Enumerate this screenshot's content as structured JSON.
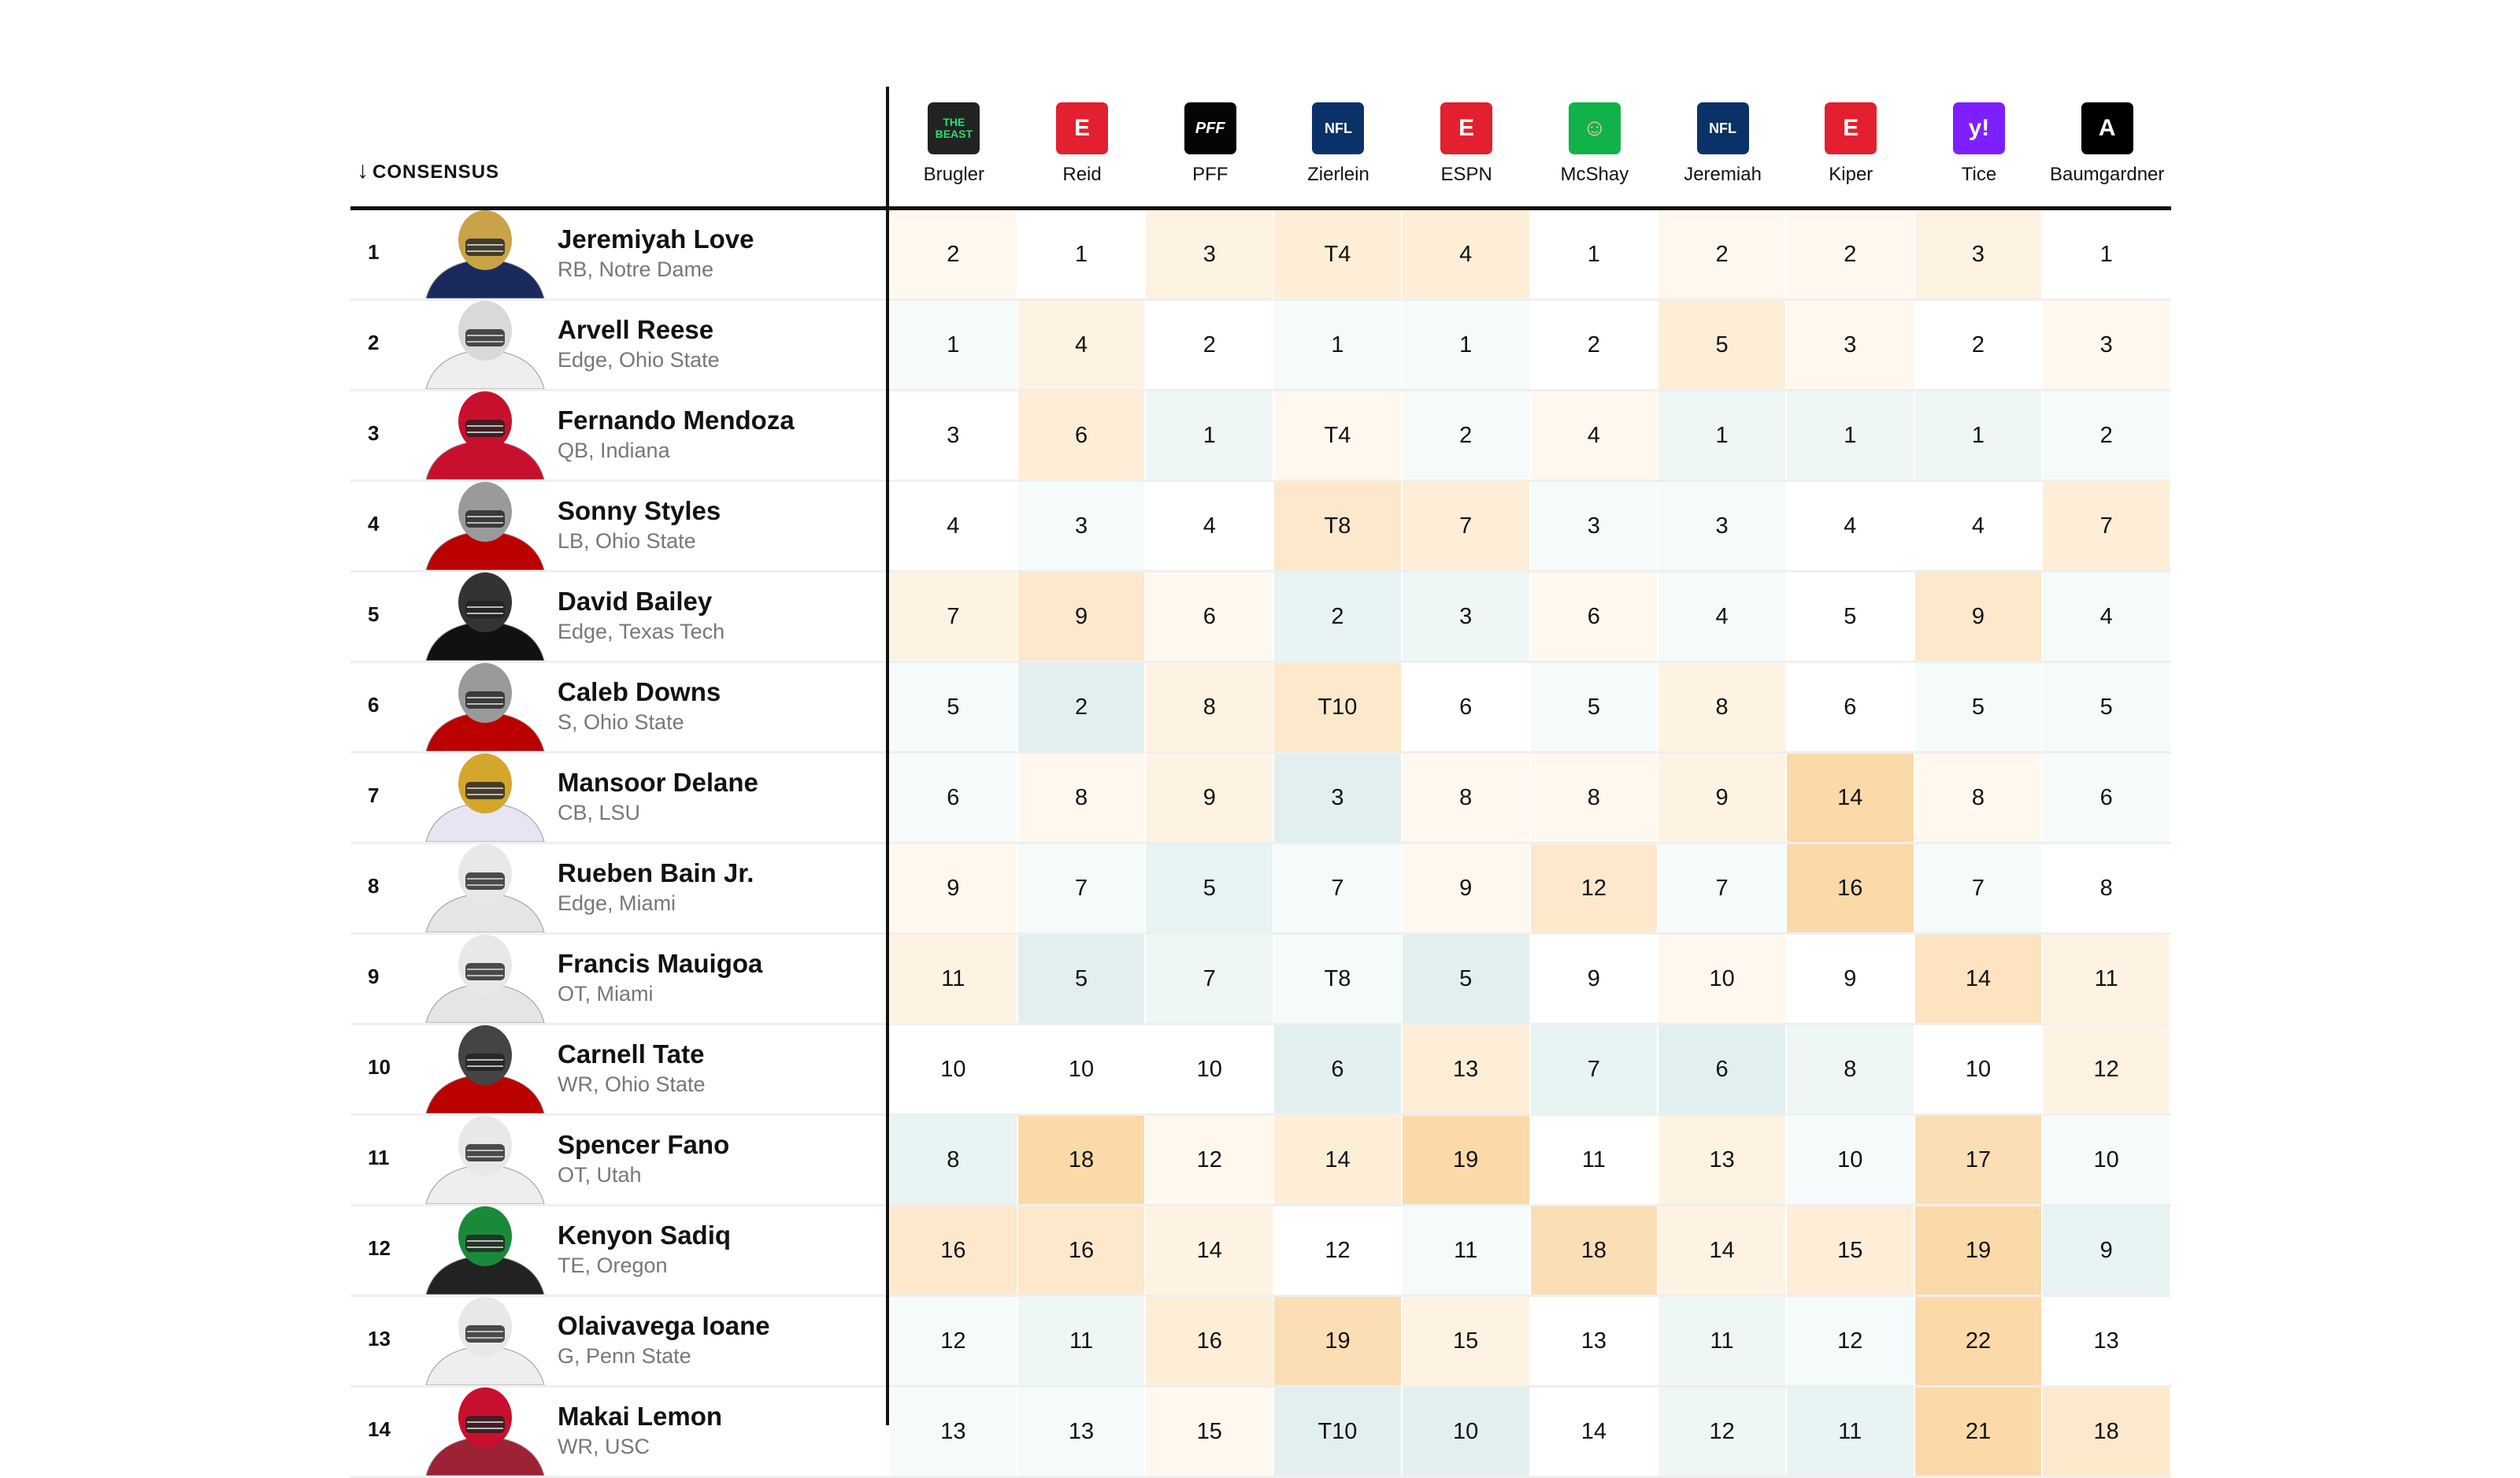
{
  "header": {
    "sort_arrow": "↓",
    "consensus_label": "CONSENSUS"
  },
  "colors": {
    "orange_max": "#fcd9a9",
    "teal_max": "#cfe5e5"
  },
  "columns": [
    {
      "label": "Brugler",
      "icon": "the-beast-icon",
      "bg": "#222222",
      "fg": "#1fe36a",
      "glyph": "THE BEAST"
    },
    {
      "label": "Reid",
      "icon": "espn-icon",
      "bg": "#e2202f",
      "fg": "#ffffff",
      "glyph": "E"
    },
    {
      "label": "PFF",
      "icon": "pff-icon",
      "bg": "#050505",
      "fg": "#ffffff",
      "glyph": "PFF"
    },
    {
      "label": "Zierlein",
      "icon": "nfl-icon",
      "bg": "#0b3268",
      "fg": "#ffffff",
      "glyph": "NFL"
    },
    {
      "label": "ESPN",
      "icon": "espn-icon",
      "bg": "#e2202f",
      "fg": "#ffffff",
      "glyph": "E"
    },
    {
      "label": "McShay",
      "icon": "mcshay-avatar-icon",
      "bg": "#12b24a",
      "fg": "#f2c9a0",
      "glyph": "☺"
    },
    {
      "label": "Jeremiah",
      "icon": "nfl-icon",
      "bg": "#0b3268",
      "fg": "#ffffff",
      "glyph": "NFL"
    },
    {
      "label": "Kiper",
      "icon": "espn-icon",
      "bg": "#e2202f",
      "fg": "#ffffff",
      "glyph": "E"
    },
    {
      "label": "Tice",
      "icon": "yahoo-icon",
      "bg": "#7e1fff",
      "fg": "#ffffff",
      "glyph": "y!"
    },
    {
      "label": "Baumgardner",
      "icon": "the-athletic-icon",
      "bg": "#000000",
      "fg": "#ffffff",
      "glyph": "A"
    }
  ],
  "players": [
    {
      "rank": "1",
      "name": "Jeremiyah Love",
      "detail": "RB, Notre Dame",
      "helmet": "#c9a347",
      "jersey": "#1b2a5c",
      "ranks": [
        "2",
        "1",
        "3",
        "T4",
        "4",
        "1",
        "2",
        "2",
        "3",
        "1"
      ]
    },
    {
      "rank": "2",
      "name": "Arvell Reese",
      "detail": "Edge, Ohio State",
      "helmet": "#d9d9d9",
      "jersey": "#eeeeee",
      "ranks": [
        "1",
        "4",
        "2",
        "1",
        "1",
        "2",
        "5",
        "3",
        "2",
        "3"
      ]
    },
    {
      "rank": "3",
      "name": "Fernando Mendoza",
      "detail": "QB, Indiana",
      "helmet": "#c8102e",
      "jersey": "#c8102e",
      "ranks": [
        "3",
        "6",
        "1",
        "T4",
        "2",
        "4",
        "1",
        "1",
        "1",
        "2"
      ]
    },
    {
      "rank": "4",
      "name": "Sonny Styles",
      "detail": "LB, Ohio State",
      "helmet": "#9a9a9a",
      "jersey": "#bb0000",
      "ranks": [
        "4",
        "3",
        "4",
        "T8",
        "7",
        "3",
        "3",
        "4",
        "4",
        "7"
      ]
    },
    {
      "rank": "5",
      "name": "David Bailey",
      "detail": "Edge, Texas Tech",
      "helmet": "#333333",
      "jersey": "#111111",
      "ranks": [
        "7",
        "9",
        "6",
        "2",
        "3",
        "6",
        "4",
        "5",
        "9",
        "4"
      ]
    },
    {
      "rank": "6",
      "name": "Caleb Downs",
      "detail": "S, Ohio State",
      "helmet": "#9a9a9a",
      "jersey": "#bb0000",
      "ranks": [
        "5",
        "2",
        "8",
        "T10",
        "6",
        "5",
        "8",
        "6",
        "5",
        "5"
      ]
    },
    {
      "rank": "7",
      "name": "Mansoor Delane",
      "detail": "CB, LSU",
      "helmet": "#d4a72c",
      "jersey": "#e6e6f2",
      "ranks": [
        "6",
        "8",
        "9",
        "3",
        "8",
        "8",
        "9",
        "14",
        "8",
        "6"
      ]
    },
    {
      "rank": "8",
      "name": "Rueben Bain Jr.",
      "detail": "Edge, Miami",
      "helmet": "#e8e8e8",
      "jersey": "#e5e5e5",
      "ranks": [
        "9",
        "7",
        "5",
        "7",
        "9",
        "12",
        "7",
        "16",
        "7",
        "8"
      ]
    },
    {
      "rank": "9",
      "name": "Francis Mauigoa",
      "detail": "OT, Miami",
      "helmet": "#e8e8e8",
      "jersey": "#e5e5e5",
      "ranks": [
        "11",
        "5",
        "7",
        "T8",
        "5",
        "9",
        "10",
        "9",
        "14",
        "11"
      ]
    },
    {
      "rank": "10",
      "name": "Carnell Tate",
      "detail": "WR, Ohio State",
      "helmet": "#444444",
      "jersey": "#bb0000",
      "ranks": [
        "10",
        "10",
        "10",
        "6",
        "13",
        "7",
        "6",
        "8",
        "10",
        "12"
      ]
    },
    {
      "rank": "11",
      "name": "Spencer Fano",
      "detail": "OT, Utah",
      "helmet": "#e8e8e8",
      "jersey": "#eeeeee",
      "ranks": [
        "8",
        "18",
        "12",
        "14",
        "19",
        "11",
        "13",
        "10",
        "17",
        "10"
      ]
    },
    {
      "rank": "12",
      "name": "Kenyon Sadiq",
      "detail": "TE, Oregon",
      "helmet": "#1a8a3a",
      "jersey": "#222222",
      "ranks": [
        "16",
        "16",
        "14",
        "12",
        "11",
        "18",
        "14",
        "15",
        "19",
        "9"
      ]
    },
    {
      "rank": "13",
      "name": "Olaivavega Ioane",
      "detail": "G, Penn State",
      "helmet": "#e8e8e8",
      "jersey": "#eeeeee",
      "ranks": [
        "12",
        "11",
        "16",
        "19",
        "15",
        "13",
        "11",
        "12",
        "22",
        "13"
      ]
    },
    {
      "rank": "14",
      "name": "Makai Lemon",
      "detail": "WR, USC",
      "helmet": "#c8102e",
      "jersey": "#9d2235",
      "ranks": [
        "13",
        "13",
        "15",
        "T10",
        "10",
        "14",
        "12",
        "11",
        "21",
        "18"
      ]
    }
  ]
}
